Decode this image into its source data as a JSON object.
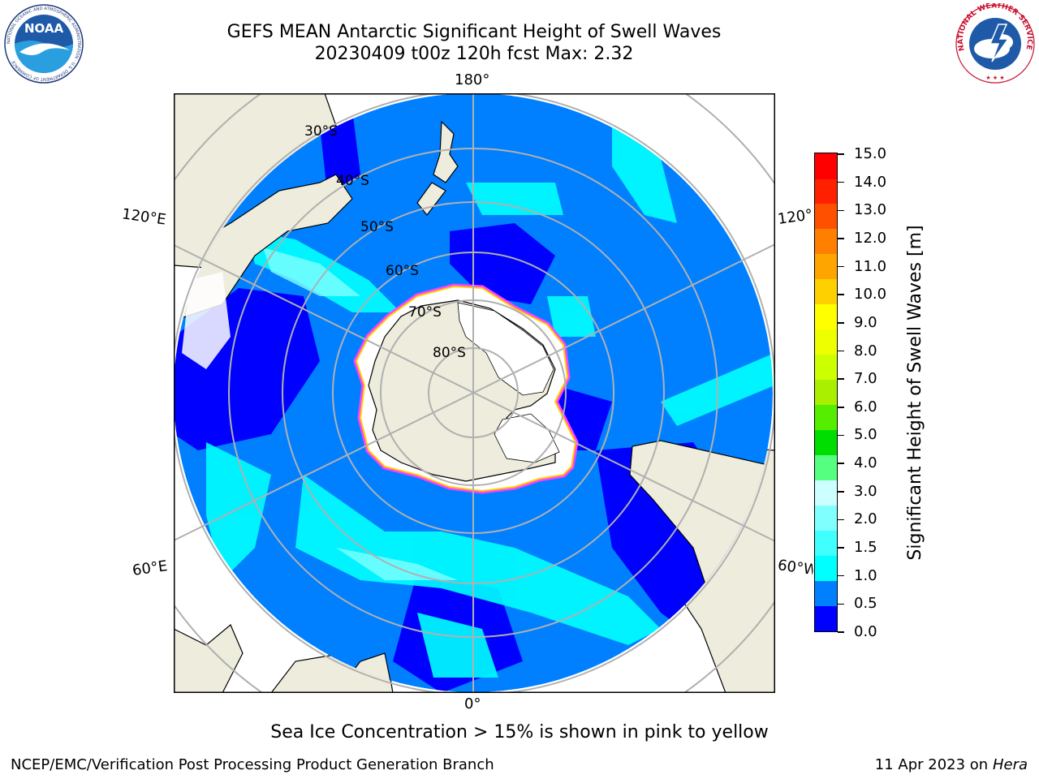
{
  "header": {
    "title_line1": "GEFS MEAN Antarctic Significant Height of Swell Waves",
    "title_line2": "20230409 t00z 120h fcst   Max: 2.32"
  },
  "logos": {
    "noaa_text": "NOAA",
    "noaa_ring_text": "NATIONAL OCEANIC AND ATMOSPHERIC ADMINISTRATION · U.S. DEPARTMENT OF COMMERCE",
    "nws_ring_text": "NATIONAL WEATHER SERVICE"
  },
  "map": {
    "projection": "south-polar-stereographic",
    "lon_labels": {
      "top": "180°",
      "bottom": "0°",
      "left_upper": "120°E",
      "left_lower": "60°E",
      "right_upper": "120°W",
      "right_lower": "60°W"
    },
    "lat_labels": [
      "30°S",
      "40°S",
      "50°S",
      "60°S",
      "70°S",
      "80°S"
    ],
    "colors": {
      "land": "#eeecdc",
      "ice": "#ffffff",
      "ocean_deep": "#0000ff",
      "ocean_mid": "#0080ff",
      "ocean_light": "#00ffff",
      "ice_edge": "#ff40ff",
      "grid": "#b0b0b0"
    }
  },
  "colorbar": {
    "title": "Significant Height of Swell Waves [m]",
    "ticks": [
      "0.0",
      "0.5",
      "1.0",
      "1.5",
      "2.0",
      "3.0",
      "4.0",
      "5.0",
      "6.0",
      "7.0",
      "8.0",
      "9.0",
      "10.0",
      "11.0",
      "12.0",
      "13.0",
      "14.0",
      "15.0"
    ],
    "colors": [
      "#0000ff",
      "#0080ff",
      "#00ffff",
      "#40ffff",
      "#80ffff",
      "#ccffff",
      "#55ff7f",
      "#00dd00",
      "#55ee00",
      "#aaee00",
      "#ccff00",
      "#eeff00",
      "#ffff00",
      "#ffd000",
      "#ffa500",
      "#ff8000",
      "#ff5000",
      "#ff2000",
      "#ff0000"
    ]
  },
  "footer": {
    "note": "Sea Ice Concentration > 15% is shown in pink to yellow",
    "credit": "NCEP/EMC/Verification Post Processing Product Generation Branch",
    "date": "11 Apr 2023 on",
    "host": "Hera"
  }
}
